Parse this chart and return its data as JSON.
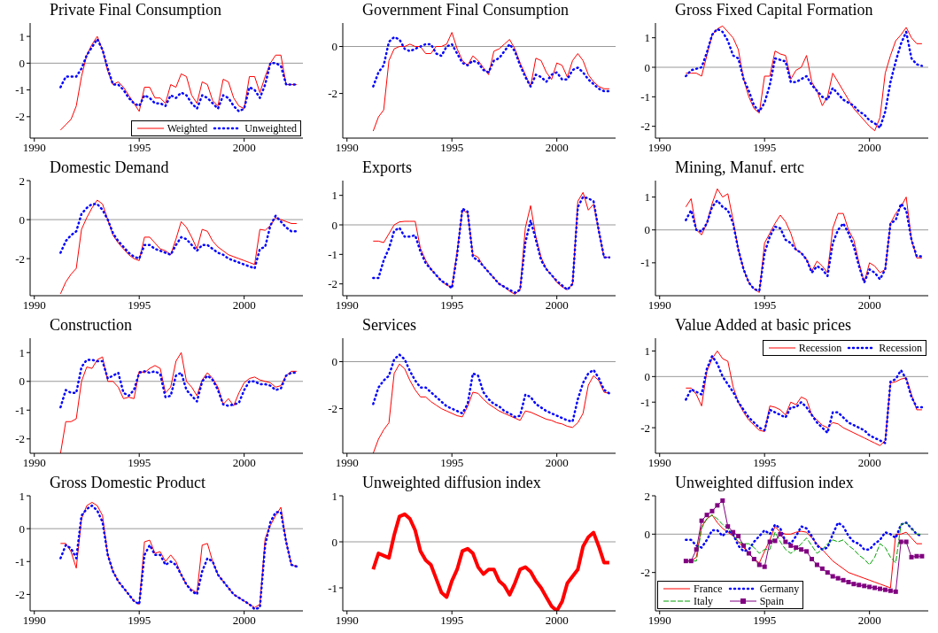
{
  "chart_data": [
    {
      "type": "line",
      "title": "Private Final Consumption",
      "x": [
        1991.25,
        1991.5,
        1991.75,
        1992,
        1992.25,
        1992.5,
        1992.75,
        1993,
        1993.25,
        1993.5,
        1993.75,
        1994,
        1994.25,
        1994.5,
        1994.75,
        1995,
        1995.25,
        1995.5,
        1995.75,
        1996,
        1996.25,
        1996.5,
        1996.75,
        1997,
        1997.25,
        1997.5,
        1997.75,
        1998,
        1998.25,
        1998.5,
        1998.75,
        1999,
        1999.25,
        1999.5,
        1999.75,
        2000,
        2000.25,
        2000.5,
        2000.75,
        2001,
        2001.25,
        2001.5,
        2001.75,
        2002,
        2002.25,
        2002.5
      ],
      "xlim": [
        1989.8,
        2002.8
      ],
      "xticks": [
        1990,
        1995,
        2000
      ],
      "ylim": [
        -2.8,
        1.5
      ],
      "yticks": [
        -2,
        -1,
        0,
        1
      ],
      "ref_lines": [
        {
          "axis": "y",
          "value": 0,
          "color": "#999999"
        }
      ],
      "legend": "bottom right",
      "series": [
        {
          "name": "Weighted",
          "color": "#ff0000",
          "line_style": "solid",
          "values": [
            -2.5,
            -2.3,
            -2.1,
            -1.6,
            -0.5,
            0.3,
            0.7,
            1.0,
            0.5,
            -0.3,
            -0.8,
            -0.7,
            -0.9,
            -1.2,
            -1.5,
            -1.8,
            -0.9,
            -0.9,
            -1.3,
            -1.3,
            -1.5,
            -0.8,
            -0.9,
            -0.4,
            -0.5,
            -1.2,
            -1.5,
            -0.7,
            -0.8,
            -1.4,
            -1.6,
            -0.6,
            -0.7,
            -1.3,
            -1.6,
            -1.7,
            -0.5,
            -0.5,
            -1.1,
            -0.5,
            0.0,
            0.3,
            0.3,
            -0.8,
            -0.8,
            -0.8
          ]
        },
        {
          "name": "Unweighted",
          "color": "#0000ff",
          "line_style": "dotted",
          "values": [
            -0.9,
            -0.5,
            -0.5,
            -0.5,
            -0.2,
            0.3,
            0.6,
            0.9,
            0.5,
            -0.2,
            -0.8,
            -0.8,
            -1.0,
            -1.3,
            -1.5,
            -1.6,
            -1.2,
            -1.3,
            -1.5,
            -1.5,
            -1.6,
            -1.2,
            -1.3,
            -1.1,
            -1.2,
            -1.5,
            -1.7,
            -1.2,
            -1.3,
            -1.5,
            -1.7,
            -1.2,
            -1.3,
            -1.6,
            -1.8,
            -1.7,
            -0.9,
            -1.0,
            -1.3,
            -0.8,
            0.0,
            0.0,
            -0.1,
            -0.8,
            -0.8,
            -0.8
          ]
        }
      ]
    },
    {
      "type": "line",
      "title": "Government Final Consumption",
      "x": [
        1991.25,
        1991.5,
        1991.75,
        1992,
        1992.25,
        1992.5,
        1992.75,
        1993,
        1993.25,
        1993.5,
        1993.75,
        1994,
        1994.25,
        1994.5,
        1994.75,
        1995,
        1995.25,
        1995.5,
        1995.75,
        1996,
        1996.25,
        1996.5,
        1996.75,
        1997,
        1997.25,
        1997.5,
        1997.75,
        1998,
        1998.25,
        1998.5,
        1998.75,
        1999,
        1999.25,
        1999.5,
        1999.75,
        2000,
        2000.25,
        2000.5,
        2000.75,
        2001,
        2001.25,
        2001.5,
        2001.75,
        2002,
        2002.25,
        2002.5
      ],
      "xlim": [
        1989.8,
        2002.8
      ],
      "xticks": [
        1990,
        1995,
        2000
      ],
      "ylim": [
        -3.9,
        1.0
      ],
      "yticks": [
        -2,
        0
      ],
      "ref_lines": [
        {
          "axis": "y",
          "value": 0,
          "color": "#999999"
        }
      ],
      "series": [
        {
          "color": "#ff0000",
          "line_style": "solid",
          "values": [
            -3.6,
            -3.0,
            -2.7,
            -0.6,
            -0.1,
            0.0,
            0.0,
            0.1,
            0.0,
            0.0,
            -0.3,
            -0.3,
            0.0,
            0.0,
            0.1,
            0.6,
            -0.1,
            -0.6,
            -0.8,
            -0.4,
            -0.6,
            -0.9,
            -1.2,
            -0.2,
            -0.1,
            0.1,
            0.3,
            -0.1,
            -0.7,
            -1.2,
            -1.7,
            -0.5,
            -0.6,
            -1.1,
            -1.4,
            -0.7,
            -0.8,
            -1.3,
            -0.6,
            -0.3,
            -0.6,
            -1.2,
            -1.5,
            -1.7,
            -1.8,
            -1.8
          ]
        },
        {
          "color": "#0000ff",
          "line_style": "dotted",
          "values": [
            -1.7,
            -1.1,
            -0.8,
            0.2,
            0.4,
            0.3,
            -0.1,
            -0.2,
            -0.1,
            0.0,
            0.1,
            0.1,
            -0.3,
            -0.4,
            0.0,
            0.1,
            -0.3,
            -0.7,
            -0.8,
            -0.6,
            -0.7,
            -1.0,
            -1.1,
            -0.6,
            -0.5,
            -0.2,
            0.1,
            -0.2,
            -0.8,
            -1.3,
            -1.7,
            -1.2,
            -1.3,
            -1.5,
            -1.2,
            -1.1,
            -1.4,
            -1.4,
            -1.0,
            -0.9,
            -1.1,
            -1.4,
            -1.6,
            -1.8,
            -1.9,
            -1.9
          ]
        }
      ]
    },
    {
      "type": "line",
      "title": "Gross Fixed Capital Formation",
      "x": [
        1991.25,
        1991.5,
        1991.75,
        1992,
        1992.25,
        1992.5,
        1992.75,
        1993,
        1993.25,
        1993.5,
        1993.75,
        1994,
        1994.25,
        1994.5,
        1994.75,
        1995,
        1995.25,
        1995.5,
        1995.75,
        1996,
        1996.25,
        1996.5,
        1996.75,
        1997,
        1997.25,
        1997.5,
        1997.75,
        1998,
        1998.25,
        1998.5,
        1998.75,
        1999,
        1999.25,
        1999.5,
        1999.75,
        2000,
        2000.25,
        2000.5,
        2000.75,
        2001,
        2001.25,
        2001.5,
        2001.75,
        2002,
        2002.25,
        2002.5
      ],
      "xlim": [
        1989.8,
        2002.8
      ],
      "xticks": [
        1990,
        1995,
        2000
      ],
      "ylim": [
        -2.4,
        1.5
      ],
      "yticks": [
        -2,
        -1,
        0,
        1
      ],
      "ref_lines": [
        {
          "axis": "y",
          "value": 0,
          "color": "#999999"
        }
      ],
      "series": [
        {
          "color": "#ff0000",
          "line_style": "solid",
          "values": [
            -0.2,
            -0.2,
            -0.2,
            -0.3,
            0.4,
            1.1,
            1.3,
            1.4,
            1.2,
            1.0,
            0.6,
            -0.4,
            -1.0,
            -1.4,
            -1.55,
            -0.3,
            -0.3,
            0.55,
            0.45,
            0.4,
            -0.4,
            -0.1,
            0.0,
            0.4,
            -0.5,
            -0.8,
            -1.3,
            -1.0,
            -0.2,
            -0.5,
            -0.8,
            -1.1,
            -1.4,
            -1.6,
            -1.8,
            -2.0,
            -2.15,
            -1.7,
            -0.2,
            0.4,
            0.9,
            1.1,
            1.35,
            1.0,
            0.8,
            0.8
          ]
        },
        {
          "color": "#0000ff",
          "line_style": "dotted",
          "values": [
            -0.3,
            -0.1,
            -0.05,
            0.0,
            0.5,
            1.1,
            1.3,
            1.2,
            0.9,
            0.4,
            0.3,
            -0.4,
            -0.8,
            -1.3,
            -1.5,
            -1.2,
            -0.6,
            0.3,
            0.25,
            0.2,
            -0.5,
            -0.5,
            -0.4,
            -0.3,
            -0.6,
            -0.8,
            -1.0,
            -1.1,
            -0.7,
            -0.9,
            -1.1,
            -1.2,
            -1.3,
            -1.5,
            -1.6,
            -1.8,
            -1.9,
            -2.05,
            -1.5,
            -0.5,
            0.2,
            0.8,
            1.2,
            0.3,
            0.1,
            0.05
          ]
        }
      ]
    },
    {
      "type": "line",
      "title": "Domestic Demand",
      "x": [
        1991.25,
        1991.5,
        1991.75,
        1992,
        1992.25,
        1992.5,
        1992.75,
        1993,
        1993.25,
        1993.5,
        1993.75,
        1994,
        1994.25,
        1994.5,
        1994.75,
        1995,
        1995.25,
        1995.5,
        1995.75,
        1996,
        1996.25,
        1996.5,
        1996.75,
        1997,
        1997.25,
        1997.5,
        1997.75,
        1998,
        1998.25,
        1998.5,
        1998.75,
        1999,
        1999.25,
        1999.5,
        1999.75,
        2000,
        2000.25,
        2000.5,
        2000.75,
        2001,
        2001.25,
        2001.5,
        2001.75,
        2002,
        2002.25,
        2002.5
      ],
      "xlim": [
        1989.8,
        2002.8
      ],
      "xticks": [
        1990,
        1995,
        2000
      ],
      "ylim": [
        -3.9,
        2.0
      ],
      "yticks": [
        -2,
        0,
        2
      ],
      "ref_lines": [
        {
          "axis": "y",
          "value": 0,
          "color": "#999999"
        }
      ],
      "series": [
        {
          "color": "#ff0000",
          "line_style": "solid",
          "values": [
            -3.8,
            -3.2,
            -2.8,
            -2.5,
            -0.5,
            0.1,
            0.6,
            1.0,
            0.8,
            0.0,
            -0.8,
            -1.2,
            -1.5,
            -1.8,
            -2.0,
            -2.1,
            -0.9,
            -0.9,
            -1.2,
            -1.5,
            -1.6,
            -1.8,
            -1.0,
            -0.1,
            -0.4,
            -0.9,
            -1.5,
            -0.5,
            -0.6,
            -1.1,
            -1.4,
            -1.6,
            -1.8,
            -1.9,
            -2.0,
            -2.1,
            -2.2,
            -2.3,
            -0.5,
            -0.55,
            -0.3,
            0.1,
            0.0,
            -0.1,
            -0.2,
            -0.2
          ]
        },
        {
          "color": "#0000ff",
          "line_style": "dotted",
          "values": [
            -1.7,
            -1.1,
            -0.8,
            -0.6,
            0.3,
            0.6,
            0.8,
            0.8,
            0.5,
            0.0,
            -0.7,
            -1.1,
            -1.4,
            -1.7,
            -1.9,
            -2.0,
            -1.3,
            -1.3,
            -1.5,
            -1.6,
            -1.7,
            -1.8,
            -1.3,
            -0.9,
            -1.0,
            -1.3,
            -1.6,
            -1.3,
            -1.3,
            -1.5,
            -1.7,
            -1.8,
            -2.0,
            -2.1,
            -2.2,
            -2.3,
            -2.4,
            -2.5,
            -1.5,
            -1.4,
            -0.3,
            0.2,
            -0.1,
            -0.4,
            -0.6,
            -0.6
          ]
        }
      ]
    },
    {
      "type": "line",
      "title": "Exports",
      "x": [
        1991.25,
        1991.5,
        1991.75,
        1992,
        1992.25,
        1992.5,
        1992.75,
        1993,
        1993.25,
        1993.5,
        1993.75,
        1994,
        1994.25,
        1994.5,
        1994.75,
        1995,
        1995.25,
        1995.5,
        1995.75,
        1996,
        1996.25,
        1996.5,
        1996.75,
        1997,
        1997.25,
        1997.5,
        1997.75,
        1998,
        1998.25,
        1998.5,
        1998.75,
        1999,
        1999.25,
        1999.5,
        1999.75,
        2000,
        2000.25,
        2000.5,
        2000.75,
        2001,
        2001.25,
        2001.5,
        2001.75,
        2002,
        2002.25,
        2002.5
      ],
      "xlim": [
        1989.8,
        2002.8
      ],
      "xticks": [
        1990,
        1995,
        2000
      ],
      "ylim": [
        -2.4,
        1.5
      ],
      "yticks": [
        -2,
        -1,
        0,
        1
      ],
      "ref_lines": [
        {
          "axis": "y",
          "value": 0,
          "color": "#999999"
        }
      ],
      "series": [
        {
          "color": "#ff0000",
          "line_style": "solid",
          "values": [
            -0.55,
            -0.55,
            -0.6,
            -0.3,
            0.0,
            0.1,
            0.12,
            0.12,
            0.12,
            -0.8,
            -1.2,
            -1.5,
            -1.7,
            -1.9,
            -2.05,
            -2.1,
            -0.9,
            0.5,
            0.4,
            -1.0,
            -1.1,
            -1.4,
            -1.6,
            -1.8,
            -2.0,
            -2.1,
            -2.25,
            -2.35,
            -2.2,
            -0.1,
            0.65,
            -0.4,
            -1.1,
            -1.5,
            -1.7,
            -1.95,
            -2.1,
            -2.2,
            -2.0,
            0.8,
            1.1,
            0.5,
            0.7,
            -0.2,
            -1.1,
            -1.1
          ]
        },
        {
          "color": "#0000ff",
          "line_style": "dotted",
          "values": [
            -1.8,
            -1.8,
            -1.2,
            -0.8,
            -0.2,
            -0.1,
            -0.4,
            -0.4,
            -0.35,
            -0.9,
            -1.3,
            -1.5,
            -1.7,
            -1.9,
            -2.0,
            -2.15,
            -1.0,
            0.55,
            0.45,
            -1.1,
            -1.2,
            -1.4,
            -1.6,
            -1.8,
            -2.0,
            -2.1,
            -2.2,
            -2.3,
            -2.2,
            -0.6,
            0.15,
            -0.5,
            -1.2,
            -1.5,
            -1.7,
            -1.9,
            -2.05,
            -2.2,
            -2.0,
            0.6,
            0.95,
            0.9,
            0.8,
            -0.2,
            -1.1,
            -1.1
          ]
        }
      ]
    },
    {
      "type": "line",
      "title": "Mining, Manuf. ertc",
      "x": [
        1991.25,
        1991.5,
        1991.75,
        1992,
        1992.25,
        1992.5,
        1992.75,
        1993,
        1993.25,
        1993.5,
        1993.75,
        1994,
        1994.25,
        1994.5,
        1994.75,
        1995,
        1995.25,
        1995.5,
        1995.75,
        1996,
        1996.25,
        1996.5,
        1996.75,
        1997,
        1997.25,
        1997.5,
        1997.75,
        1998,
        1998.25,
        1998.5,
        1998.75,
        1999,
        1999.25,
        1999.5,
        1999.75,
        2000,
        2000.25,
        2000.5,
        2000.75,
        2001,
        2001.25,
        2001.5,
        2001.75,
        2002,
        2002.25,
        2002.5
      ],
      "xlim": [
        1989.8,
        2002.8
      ],
      "xticks": [
        1990,
        1995,
        2000
      ],
      "ylim": [
        -2.0,
        1.5
      ],
      "yticks": [
        -1,
        0,
        1
      ],
      "ref_lines": [
        {
          "axis": "y",
          "value": 0,
          "color": "#999999"
        }
      ],
      "series": [
        {
          "color": "#ff0000",
          "line_style": "solid",
          "values": [
            0.7,
            0.95,
            0.0,
            -0.15,
            0.2,
            0.8,
            1.25,
            1.0,
            1.1,
            0.3,
            -0.6,
            -1.2,
            -1.6,
            -1.8,
            -1.9,
            -0.4,
            -0.1,
            0.2,
            0.45,
            0.25,
            -0.1,
            -0.6,
            -0.7,
            -0.9,
            -1.25,
            -0.95,
            -1.1,
            -1.3,
            0.05,
            0.5,
            0.5,
            0.0,
            -0.3,
            -1.0,
            -1.6,
            -1.0,
            -1.1,
            -1.3,
            -1.2,
            0.2,
            0.5,
            0.7,
            1.0,
            -0.3,
            -0.85,
            -0.85
          ]
        },
        {
          "color": "#0000ff",
          "line_style": "dotted",
          "values": [
            0.3,
            0.6,
            0.0,
            -0.05,
            0.2,
            0.7,
            0.9,
            0.7,
            0.6,
            0.2,
            -0.6,
            -1.2,
            -1.6,
            -1.8,
            -1.85,
            -0.7,
            -0.2,
            0.1,
            0.05,
            -0.3,
            -0.4,
            -0.6,
            -0.7,
            -0.9,
            -1.3,
            -1.1,
            -1.2,
            -1.4,
            -0.4,
            0.0,
            0.2,
            -0.1,
            -0.5,
            -1.1,
            -1.6,
            -1.2,
            -1.3,
            -1.5,
            -1.2,
            0.2,
            0.3,
            0.8,
            0.6,
            -0.3,
            -0.8,
            -0.8
          ]
        }
      ]
    },
    {
      "type": "line",
      "title": "Construction",
      "x": [
        1991.25,
        1991.5,
        1991.75,
        1992,
        1992.25,
        1992.5,
        1992.75,
        1993,
        1993.25,
        1993.5,
        1993.75,
        1994,
        1994.25,
        1994.5,
        1994.75,
        1995,
        1995.25,
        1995.5,
        1995.75,
        1996,
        1996.25,
        1996.5,
        1996.75,
        1997,
        1997.25,
        1997.5,
        1997.75,
        1998,
        1998.25,
        1998.5,
        1998.75,
        1999,
        1999.25,
        1999.5,
        1999.75,
        2000,
        2000.25,
        2000.5,
        2000.75,
        2001,
        2001.25,
        2001.5,
        2001.75,
        2002,
        2002.25,
        2002.5
      ],
      "xlim": [
        1989.8,
        2002.8
      ],
      "xticks": [
        1990,
        1995,
        2000
      ],
      "ylim": [
        -2.5,
        1.5
      ],
      "yticks": [
        -2,
        -1,
        0,
        1
      ],
      "ref_lines": [
        {
          "axis": "y",
          "value": 0,
          "color": "#999999"
        }
      ],
      "series": [
        {
          "color": "#ff0000",
          "line_style": "solid",
          "values": [
            -2.5,
            -1.4,
            -1.4,
            -1.3,
            0.0,
            0.5,
            0.45,
            0.75,
            0.85,
            0.0,
            0.0,
            -0.2,
            -0.6,
            -0.55,
            -0.6,
            0.35,
            0.3,
            0.45,
            0.55,
            0.45,
            -0.4,
            -0.2,
            0.7,
            1.0,
            0.0,
            -0.2,
            -0.5,
            0.05,
            0.3,
            0.1,
            -0.2,
            -0.8,
            -0.6,
            -0.85,
            -0.4,
            -0.05,
            0.1,
            0.15,
            0.05,
            0.0,
            -0.05,
            -0.2,
            -0.15,
            0.2,
            0.35,
            0.35
          ]
        },
        {
          "color": "#0000ff",
          "line_style": "dotted",
          "values": [
            -0.9,
            -0.3,
            -0.4,
            -0.4,
            0.5,
            0.75,
            0.75,
            0.7,
            0.7,
            0.1,
            0.2,
            0.3,
            -0.4,
            -0.5,
            -0.3,
            0.3,
            0.35,
            0.3,
            0.35,
            0.25,
            -0.55,
            -0.5,
            0.2,
            0.3,
            -0.3,
            -0.5,
            -0.7,
            0.0,
            0.2,
            0.05,
            -0.3,
            -0.8,
            -0.85,
            -0.8,
            -0.75,
            -0.3,
            0.0,
            0.0,
            -0.1,
            -0.1,
            -0.15,
            -0.3,
            -0.25,
            0.2,
            0.3,
            0.3
          ]
        }
      ]
    },
    {
      "type": "line",
      "title": "Services",
      "x": [
        1991.25,
        1991.5,
        1991.75,
        1992,
        1992.25,
        1992.5,
        1992.75,
        1993,
        1993.25,
        1993.5,
        1993.75,
        1994,
        1994.25,
        1994.5,
        1994.75,
        1995,
        1995.25,
        1995.5,
        1995.75,
        1996,
        1996.25,
        1996.5,
        1996.75,
        1997,
        1997.25,
        1997.5,
        1997.75,
        1998,
        1998.25,
        1998.5,
        1998.75,
        1999,
        1999.25,
        1999.5,
        1999.75,
        2000,
        2000.25,
        2000.5,
        2000.75,
        2001,
        2001.25,
        2001.5,
        2001.75,
        2002,
        2002.25,
        2002.5
      ],
      "xlim": [
        1989.8,
        2002.8
      ],
      "xticks": [
        1990,
        1995,
        2000
      ],
      "ylim": [
        -3.9,
        1.0
      ],
      "yticks": [
        -2,
        0
      ],
      "ref_lines": [
        {
          "axis": "y",
          "value": 0,
          "color": "#999999"
        }
      ],
      "series": [
        {
          "color": "#ff0000",
          "line_style": "solid",
          "values": [
            -3.9,
            -3.3,
            -2.9,
            -2.6,
            -0.5,
            -0.1,
            -0.3,
            -0.8,
            -1.2,
            -1.5,
            -1.5,
            -1.7,
            -1.85,
            -2.0,
            -2.1,
            -2.2,
            -2.3,
            -2.35,
            -1.9,
            -1.3,
            -1.35,
            -1.6,
            -1.8,
            -1.95,
            -2.1,
            -2.2,
            -2.3,
            -2.4,
            -2.5,
            -2.1,
            -2.15,
            -2.25,
            -2.35,
            -2.45,
            -2.5,
            -2.6,
            -2.65,
            -2.75,
            -2.8,
            -2.6,
            -2.2,
            -1.0,
            -0.6,
            -0.8,
            -1.3,
            -1.35
          ]
        },
        {
          "color": "#0000ff",
          "line_style": "dotted",
          "values": [
            -1.8,
            -1.1,
            -0.8,
            -0.6,
            0.1,
            0.3,
            0.1,
            -0.4,
            -0.8,
            -1.1,
            -1.1,
            -1.3,
            -1.5,
            -1.7,
            -1.9,
            -2.0,
            -2.1,
            -2.2,
            -1.8,
            -0.5,
            -0.6,
            -1.3,
            -1.6,
            -1.8,
            -1.9,
            -2.1,
            -2.2,
            -2.35,
            -2.3,
            -1.4,
            -1.5,
            -1.8,
            -1.95,
            -2.1,
            -2.2,
            -2.3,
            -2.4,
            -2.5,
            -2.55,
            -1.6,
            -0.9,
            -0.5,
            -0.35,
            -0.7,
            -1.2,
            -1.35
          ]
        }
      ]
    },
    {
      "type": "line",
      "title": "Value Added at basic prices",
      "x": [
        1991.25,
        1991.5,
        1991.75,
        1992,
        1992.25,
        1992.5,
        1992.75,
        1993,
        1993.25,
        1993.5,
        1993.75,
        1994,
        1994.25,
        1994.5,
        1994.75,
        1995,
        1995.25,
        1995.5,
        1995.75,
        1996,
        1996.25,
        1996.5,
        1996.75,
        1997,
        1997.25,
        1997.5,
        1997.75,
        1998,
        1998.25,
        1998.5,
        1998.75,
        1999,
        1999.25,
        1999.5,
        1999.75,
        2000,
        2000.25,
        2000.5,
        2000.75,
        2001,
        2001.25,
        2001.5,
        2001.75,
        2002,
        2002.25,
        2002.5
      ],
      "xlim": [
        1989.8,
        2002.8
      ],
      "xticks": [
        1990,
        1995,
        2000
      ],
      "ylim": [
        -3.0,
        1.5
      ],
      "yticks": [
        -2,
        -1,
        0,
        1
      ],
      "ref_lines": [
        {
          "axis": "y",
          "value": 0,
          "color": "#999999"
        }
      ],
      "legend": "top right",
      "series": [
        {
          "name": "Recession",
          "color": "#ff0000",
          "line_style": "solid",
          "values": [
            -0.45,
            -0.45,
            -0.7,
            -1.15,
            0.2,
            0.7,
            1.0,
            0.7,
            0.6,
            -0.4,
            -1.0,
            -1.4,
            -1.7,
            -1.9,
            -2.1,
            -2.15,
            -1.15,
            -1.2,
            -1.3,
            -1.5,
            -1.0,
            -1.1,
            -0.8,
            -0.9,
            -1.5,
            -1.7,
            -1.9,
            -2.0,
            -1.8,
            -1.85,
            -2.0,
            -2.1,
            -2.2,
            -2.3,
            -2.4,
            -2.5,
            -2.6,
            -2.7,
            -2.5,
            -0.25,
            -0.2,
            -0.1,
            -0.05,
            -0.7,
            -1.3,
            -1.3
          ]
        },
        {
          "name": "Recession",
          "color": "#0000ff",
          "line_style": "dotted",
          "values": [
            -0.9,
            -0.5,
            -0.6,
            -0.7,
            0.3,
            0.8,
            0.5,
            0.0,
            -0.3,
            -0.6,
            -1.0,
            -1.3,
            -1.6,
            -1.8,
            -2.0,
            -2.1,
            -1.3,
            -1.4,
            -1.5,
            -1.6,
            -1.2,
            -1.2,
            -1.0,
            -1.2,
            -1.5,
            -1.8,
            -2.0,
            -2.2,
            -1.4,
            -1.4,
            -1.6,
            -1.8,
            -1.9,
            -2.0,
            -2.1,
            -2.3,
            -2.4,
            -2.5,
            -2.6,
            -0.2,
            -0.1,
            0.25,
            -0.1,
            -0.8,
            -1.2,
            -1.2
          ]
        }
      ]
    },
    {
      "type": "line",
      "title": "Gross Domestic Product",
      "x": [
        1991.25,
        1991.5,
        1991.75,
        1992,
        1992.25,
        1992.5,
        1992.75,
        1993,
        1993.25,
        1993.5,
        1993.75,
        1994,
        1994.25,
        1994.5,
        1994.75,
        1995,
        1995.25,
        1995.5,
        1995.75,
        1996,
        1996.25,
        1996.5,
        1996.75,
        1997,
        1997.25,
        1997.5,
        1997.75,
        1998,
        1998.25,
        1998.5,
        1998.75,
        1999,
        1999.25,
        1999.5,
        1999.75,
        2000,
        2000.25,
        2000.5,
        2000.75,
        2001,
        2001.25,
        2001.5,
        2001.75,
        2002,
        2002.25,
        2002.5
      ],
      "xlim": [
        1989.8,
        2002.8
      ],
      "xticks": [
        1990,
        1995,
        2000
      ],
      "ylim": [
        -2.5,
        1.0
      ],
      "yticks": [
        -2,
        -1,
        0,
        1
      ],
      "ref_lines": [
        {
          "axis": "y",
          "value": 0,
          "color": "#999999"
        }
      ],
      "series": [
        {
          "color": "#ff0000",
          "line_style": "solid",
          "values": [
            -0.45,
            -0.45,
            -0.7,
            -1.2,
            0.3,
            0.7,
            0.8,
            0.7,
            0.4,
            -0.8,
            -1.3,
            -1.6,
            -1.8,
            -2.0,
            -2.2,
            -2.3,
            -0.4,
            -0.35,
            -0.75,
            -0.7,
            -1.0,
            -0.8,
            -1.0,
            -1.4,
            -1.7,
            -1.85,
            -1.95,
            -0.5,
            -0.45,
            -1.0,
            -1.4,
            -1.6,
            -1.8,
            -2.0,
            -2.1,
            -2.2,
            -2.3,
            -2.4,
            -2.3,
            -0.3,
            0.1,
            0.4,
            0.65,
            -0.4,
            -1.1,
            -1.15
          ]
        },
        {
          "color": "#0000ff",
          "line_style": "dotted",
          "values": [
            -0.9,
            -0.5,
            -0.6,
            -0.9,
            0.4,
            0.6,
            0.7,
            0.55,
            0.2,
            -0.8,
            -1.3,
            -1.6,
            -1.8,
            -2.0,
            -2.2,
            -2.3,
            -0.8,
            -0.5,
            -0.8,
            -0.8,
            -1.1,
            -1.0,
            -1.1,
            -1.4,
            -1.7,
            -1.9,
            -2.0,
            -1.3,
            -0.9,
            -1.0,
            -1.4,
            -1.6,
            -1.8,
            -2.0,
            -2.1,
            -2.2,
            -2.3,
            -2.45,
            -2.4,
            -0.5,
            0.2,
            0.5,
            0.5,
            -0.4,
            -1.1,
            -1.15
          ]
        }
      ]
    },
    {
      "type": "line",
      "title": "Unweighted diffusion index",
      "x": [
        1991.25,
        1991.5,
        1991.75,
        1992,
        1992.25,
        1992.5,
        1992.75,
        1993,
        1993.25,
        1993.5,
        1993.75,
        1994,
        1994.25,
        1994.5,
        1994.75,
        1995,
        1995.25,
        1995.5,
        1995.75,
        1996,
        1996.25,
        1996.5,
        1996.75,
        1997,
        1997.25,
        1997.5,
        1997.75,
        1998,
        1998.25,
        1998.5,
        1998.75,
        1999,
        1999.25,
        1999.5,
        1999.75,
        2000,
        2000.25,
        2000.5,
        2000.75,
        2001,
        2001.25,
        2001.5,
        2001.75,
        2002,
        2002.25,
        2002.5
      ],
      "xlim": [
        1989.8,
        2002.8
      ],
      "xticks": [
        1990,
        1995,
        2000
      ],
      "ylim": [
        -1.5,
        1.0
      ],
      "yticks": [
        -1,
        0,
        1
      ],
      "ref_lines": [
        {
          "axis": "y",
          "value": 0,
          "color": "#999999"
        }
      ],
      "series": [
        {
          "color": "#ff0000",
          "line_style": "solid",
          "values": [
            -0.6,
            -0.25,
            -0.3,
            -0.35,
            0.15,
            0.55,
            0.6,
            0.5,
            0.25,
            -0.2,
            -0.4,
            -0.5,
            -0.8,
            -1.1,
            -1.2,
            -0.85,
            -0.6,
            -0.2,
            -0.15,
            -0.25,
            -0.55,
            -0.7,
            -0.6,
            -0.6,
            -0.85,
            -0.95,
            -1.15,
            -0.9,
            -0.6,
            -0.55,
            -0.65,
            -0.85,
            -1.0,
            -1.2,
            -1.4,
            -1.5,
            -1.3,
            -0.9,
            -0.75,
            -0.6,
            -0.1,
            0.1,
            0.2,
            -0.1,
            -0.45,
            -0.45
          ]
        }
      ]
    },
    {
      "type": "line",
      "title": "Unweighted diffusion index",
      "x": [
        1991.25,
        1991.5,
        1991.75,
        1992,
        1992.25,
        1992.5,
        1992.75,
        1993,
        1993.25,
        1993.5,
        1993.75,
        1994,
        1994.25,
        1994.5,
        1994.75,
        1995,
        1995.25,
        1995.5,
        1995.75,
        1996,
        1996.25,
        1996.5,
        1996.75,
        1997,
        1997.25,
        1997.5,
        1997.75,
        1998,
        1998.25,
        1998.5,
        1998.75,
        1999,
        1999.25,
        1999.5,
        1999.75,
        2000,
        2000.25,
        2000.5,
        2000.75,
        2001,
        2001.25,
        2001.5,
        2001.75,
        2002,
        2002.25,
        2002.5
      ],
      "xlim": [
        1989.8,
        2002.8
      ],
      "xticks": [
        1990,
        1995,
        2000
      ],
      "ylim": [
        -4.0,
        2.0
      ],
      "yticks": [
        -2,
        0,
        2
      ],
      "ref_lines": [
        {
          "axis": "y",
          "value": 0,
          "color": "#999999"
        }
      ],
      "legend": "bottom left",
      "series": [
        {
          "name": "France",
          "color": "#ff0000",
          "line_style": "solid",
          "values": [
            -1.4,
            -1.4,
            -1.2,
            0.4,
            0.8,
            1.0,
            0.6,
            0.3,
            0.1,
            -0.1,
            -0.4,
            -0.7,
            -1.0,
            -1.3,
            -1.5,
            -0.9,
            -0.3,
            0.4,
            0.1,
            0.0,
            0.0,
            0.1,
            0.15,
            0.1,
            -0.2,
            -0.5,
            -0.8,
            -1.1,
            -1.4,
            -1.6,
            -1.8,
            -2.0,
            -2.1,
            -2.2,
            -2.3,
            -2.4,
            -2.5,
            -2.6,
            -2.7,
            -2.8,
            0.0,
            0.0,
            0.1,
            -0.2,
            -0.5,
            -0.5
          ]
        },
        {
          "name": "Germany",
          "color": "#0000ff",
          "line_style": "dotted",
          "values": [
            -0.3,
            -0.3,
            -0.6,
            -0.7,
            -0.3,
            0.2,
            0.2,
            -0.1,
            0.2,
            0.0,
            -0.6,
            -0.9,
            -0.8,
            -0.4,
            -0.1,
            0.2,
            0.0,
            0.5,
            0.3,
            -0.4,
            -0.5,
            -0.1,
            0.4,
            0.3,
            -0.1,
            -0.6,
            -0.8,
            -0.7,
            0.0,
            0.6,
            0.4,
            -0.1,
            -0.4,
            -0.5,
            -0.8,
            -0.8,
            -0.5,
            -0.3,
            0.1,
            0.0,
            -0.2,
            0.5,
            0.6,
            0.3,
            0.0,
            -0.1
          ]
        },
        {
          "name": "Italy",
          "color": "#00a000",
          "line_style": "dashed",
          "values": [
            -1.4,
            -1.4,
            -1.4,
            0.3,
            0.8,
            1.0,
            0.8,
            0.5,
            0.3,
            0.0,
            -0.4,
            -0.5,
            -0.5,
            -0.7,
            -1.0,
            -0.8,
            -0.8,
            0.1,
            -0.4,
            -0.8,
            -1.0,
            -0.8,
            -0.5,
            -0.2,
            -0.6,
            -1.0,
            -0.8,
            -0.5,
            -0.3,
            -0.4,
            -0.3,
            -0.6,
            -0.8,
            -1.1,
            -1.3,
            -1.6,
            -1.2,
            -0.5,
            -0.7,
            -1.2,
            -1.5,
            0.5,
            0.6,
            0.3,
            0.0,
            0.0
          ]
        },
        {
          "name": "Spain",
          "color": "#800080",
          "line_style": "solid",
          "marker": "square",
          "values": [
            -1.4,
            -1.4,
            -0.8,
            0.7,
            1.0,
            1.2,
            1.5,
            1.75,
            0.4,
            0.1,
            -0.1,
            -0.6,
            -1.0,
            -1.3,
            -1.6,
            -1.7,
            -0.4,
            -0.35,
            0.0,
            -0.4,
            -0.6,
            -0.7,
            -0.8,
            -0.9,
            -1.3,
            -1.6,
            -1.8,
            -2.0,
            -2.2,
            -2.3,
            -2.4,
            -2.5,
            -2.6,
            -2.65,
            -2.7,
            -2.75,
            -2.8,
            -2.85,
            -2.9,
            -2.95,
            -3.0,
            -0.4,
            -0.4,
            -1.2,
            -1.15,
            -1.15
          ]
        }
      ]
    }
  ]
}
